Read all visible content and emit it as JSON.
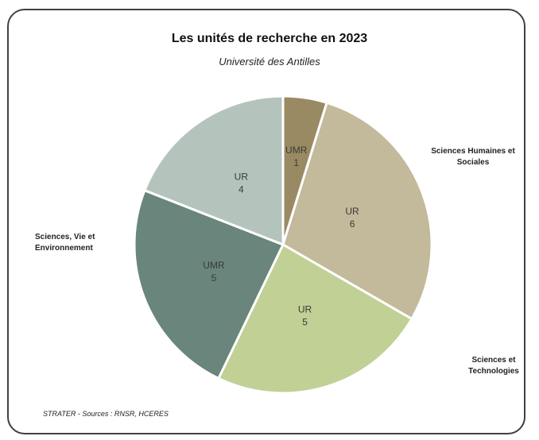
{
  "chart_data": {
    "type": "pie",
    "title": "Les unités de recherche en 2023",
    "subtitle": "Université des Antilles",
    "slices": [
      {
        "type_label": "UMR",
        "value": 1,
        "group": "Sciences Humaines et Sociales",
        "color": "#9a8a63"
      },
      {
        "type_label": "UR",
        "value": 6,
        "group": "Sciences Humaines et Sociales",
        "color": "#c3b99b"
      },
      {
        "type_label": "UR",
        "value": 5,
        "group": "Sciences et Technologies",
        "color": "#c1d095"
      },
      {
        "type_label": "UMR",
        "value": 5,
        "group": "Sciences, Vie et Environnement",
        "color": "#6a857b"
      },
      {
        "type_label": "UR",
        "value": 4,
        "group": "Sciences, Vie et Environnement",
        "color": "#b4c4bd"
      }
    ],
    "group_labels": {
      "shs": "Sciences Humaines et Sociales",
      "sve": "Sciences, Vie et Environnement",
      "st": "Sciences et Technologies"
    },
    "source": "STRATER - Sources : RNSR, HCERES"
  }
}
